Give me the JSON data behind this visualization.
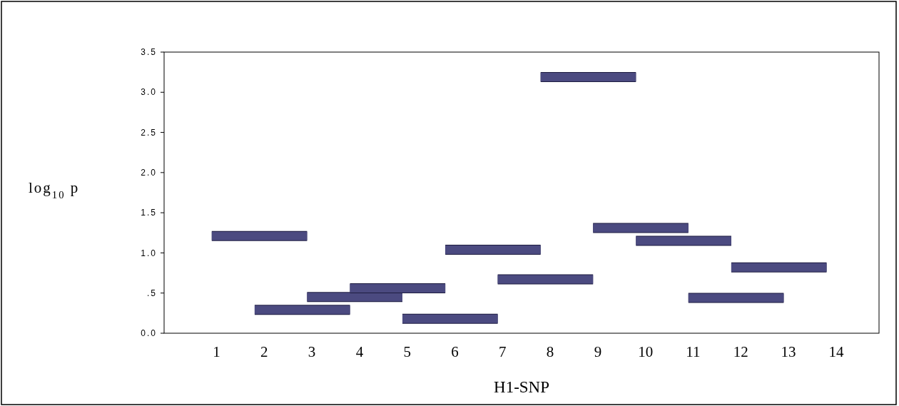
{
  "chart_data": {
    "type": "line",
    "xlabel": "H1-SNP",
    "ylabel": "log$_{10}$ p",
    "xlim": [
      -0.1,
      14.9
    ],
    "xticks": [
      1,
      2,
      3,
      4,
      5,
      6,
      7,
      8,
      9,
      10,
      11,
      12,
      13,
      14
    ],
    "ylim": [
      0,
      3.5
    ],
    "yticks": [
      {
        "value": 0,
        "label": "0.0"
      },
      {
        "value": 0.5,
        "label": ".5"
      },
      {
        "value": 1,
        "label": "1.0"
      },
      {
        "value": 1.5,
        "label": "1.5"
      },
      {
        "value": 2,
        "label": "2.0"
      },
      {
        "value": 2.5,
        "label": "2.5"
      },
      {
        "value": 3,
        "label": "3.0"
      },
      {
        "value": 3.5,
        "label": "3.5"
      }
    ],
    "grid": false,
    "marker": "none",
    "line_style": "solid",
    "series": [
      {
        "color": "#4b4a80",
        "x": [
          0.9,
          2.9
        ],
        "values": [
          1.21,
          1.21
        ]
      },
      {
        "color": "#4b4a80",
        "x": [
          1.8,
          3.8
        ],
        "values": [
          0.29,
          0.29
        ]
      },
      {
        "color": "#4b4a80",
        "x": [
          2.9,
          4.9
        ],
        "values": [
          0.45,
          0.45
        ]
      },
      {
        "color": "#4b4a80",
        "x": [
          3.8,
          5.8
        ],
        "values": [
          0.56,
          0.56
        ]
      },
      {
        "color": "#4b4a80",
        "x": [
          4.9,
          6.9
        ],
        "values": [
          0.18,
          0.18
        ]
      },
      {
        "color": "#4b4a80",
        "x": [
          5.8,
          7.8
        ],
        "values": [
          1.04,
          1.04
        ]
      },
      {
        "color": "#4b4a80",
        "x": [
          6.9,
          8.9
        ],
        "values": [
          0.67,
          0.67
        ]
      },
      {
        "color": "#4b4a80",
        "x": [
          7.8,
          9.8
        ],
        "values": [
          3.19,
          3.19
        ]
      },
      {
        "color": "#4b4a80",
        "x": [
          8.9,
          10.9
        ],
        "values": [
          1.31,
          1.31
        ]
      },
      {
        "color": "#4b4a80",
        "x": [
          9.8,
          11.8
        ],
        "values": [
          1.15,
          1.15
        ]
      },
      {
        "color": "#4b4a80",
        "x": [
          10.9,
          12.9
        ],
        "values": [
          0.44,
          0.44
        ]
      },
      {
        "color": "#4b4a80",
        "x": [
          11.8,
          13.8
        ],
        "values": [
          0.82,
          0.82
        ]
      }
    ]
  }
}
